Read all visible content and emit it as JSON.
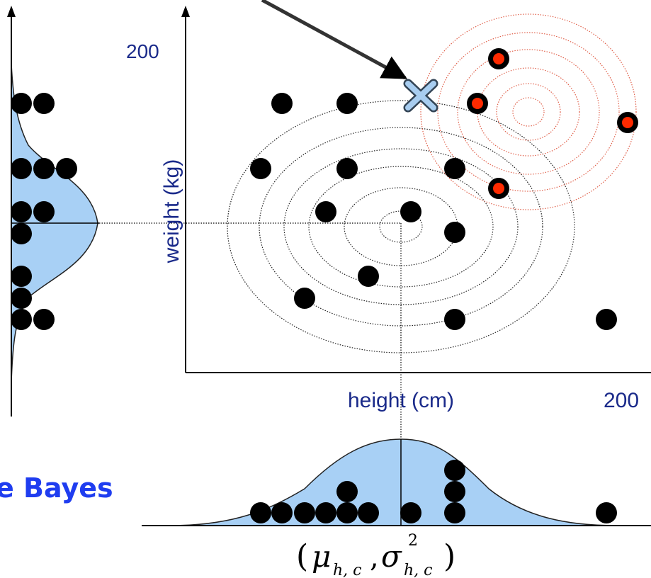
{
  "labels": {
    "y_tick": "200",
    "y_axis": "weight (kg)",
    "x_axis": "height (cm)",
    "x_tick": "200",
    "partial_title": "e Bayes",
    "formula": {
      "open": "(",
      "mu": "μ",
      "mu_sub": "h, c",
      "comma": ",",
      "sigma": "σ",
      "sigma_sup": "2",
      "sigma_sub": "h, c",
      "close": ")"
    }
  },
  "colors": {
    "axis": "#000000",
    "label": "#1a2a8a",
    "title": "#1f3df0",
    "density_fill": "#a8d0f5",
    "red_contour": "#e0604a",
    "red_dot": "#ff2a00",
    "query_marker": "#a8cdf0"
  },
  "icons": {
    "query": "x-mark-icon"
  },
  "data": {
    "black_points": [
      [
        398,
        146
      ],
      [
        490,
        146
      ],
      [
        368,
        238
      ],
      [
        490,
        238
      ],
      [
        642,
        238
      ],
      [
        460,
        299
      ],
      [
        580,
        299
      ],
      [
        642,
        328
      ],
      [
        520,
        390
      ],
      [
        430,
        421
      ],
      [
        642,
        451
      ],
      [
        856,
        451
      ]
    ],
    "red_points": [
      [
        704,
        83
      ],
      [
        674,
        146
      ],
      [
        886,
        173
      ],
      [
        704,
        266
      ]
    ],
    "left_stack": [
      [
        30,
        146
      ],
      [
        62,
        146
      ],
      [
        30,
        238
      ],
      [
        62,
        238
      ],
      [
        94,
        238
      ],
      [
        30,
        299
      ],
      [
        62,
        299
      ],
      [
        30,
        330
      ],
      [
        30,
        390
      ],
      [
        30,
        421
      ],
      [
        30,
        451
      ],
      [
        62,
        451
      ]
    ],
    "bottom_stack": [
      [
        368,
        724
      ],
      [
        398,
        724
      ],
      [
        430,
        724
      ],
      [
        460,
        724
      ],
      [
        490,
        724
      ],
      [
        520,
        724
      ],
      [
        490,
        694
      ],
      [
        580,
        724
      ],
      [
        642,
        724
      ],
      [
        642,
        694
      ],
      [
        642,
        664
      ]
    ],
    "extra_bottom": [
      [
        856,
        724
      ]
    ]
  }
}
